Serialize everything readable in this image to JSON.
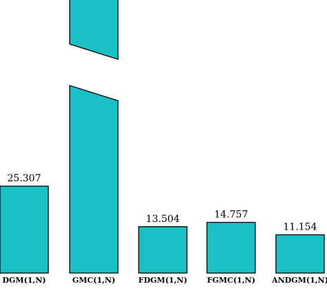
{
  "chart_data": {
    "type": "bar",
    "title": "",
    "xlabel": "",
    "ylabel": "",
    "categories": [
      "DGM(1,N)",
      "GMC(1,N)",
      "FDGM(1,N)",
      "FGMC(1,N)",
      "ANDGM(1,N)"
    ],
    "values": [
      25.307,
      null,
      13.504,
      14.757,
      11.154
    ],
    "data_labels": [
      "25.307",
      "",
      "13.504",
      "14.757",
      "11.154"
    ],
    "broken_bar": "GMC(1,N)",
    "axis_break": true,
    "colors": {
      "bar": "#1bbfc4",
      "stroke": "#000000"
    },
    "grid": false,
    "legend": "none"
  }
}
